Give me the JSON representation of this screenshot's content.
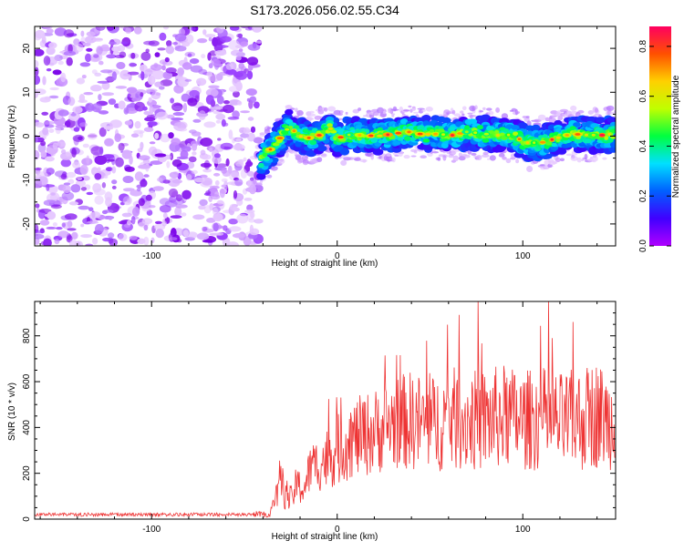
{
  "figure": {
    "title": "S173.2026.056.02.55.C34"
  },
  "chart_data": [
    {
      "type": "heatmap",
      "name": "spectrogram",
      "xlabel": "Height of straight line (km)",
      "ylabel": "Frequency (Hz)",
      "xlim": [
        -163,
        150
      ],
      "ylim": [
        -25,
        25
      ],
      "xticks": [
        -100,
        0,
        100
      ],
      "yticks": [
        20,
        10,
        0,
        -10,
        -20
      ],
      "noise_region_x": [
        -163,
        -42
      ],
      "colorbar": {
        "label": "Normalized spectral amplitude",
        "range": [
          0,
          0.88
        ],
        "ticks": [
          0.0,
          0.2,
          0.4,
          0.6,
          0.8
        ],
        "colormap": [
          "#b000ff",
          "#4000ff",
          "#0060ff",
          "#00e0ff",
          "#00ff40",
          "#c0ff00",
          "#ffd000",
          "#ff5000",
          "#ff0060"
        ]
      },
      "signal_track": {
        "x": [
          -42,
          -38,
          -34,
          -30,
          -26,
          -24,
          -20,
          -14,
          -8,
          -4,
          0,
          6,
          14,
          22,
          30,
          38,
          46,
          54,
          62,
          70,
          78,
          86,
          94,
          102,
          110,
          118,
          126,
          134,
          142,
          148
        ],
        "frequency": [
          -6,
          -4,
          -2,
          0,
          2,
          1.5,
          0,
          -0.5,
          0.5,
          2,
          -0.5,
          0.3,
          0.2,
          0,
          0.5,
          1,
          0.4,
          0.5,
          0.2,
          1,
          0.6,
          0.2,
          0.3,
          -1.5,
          -1.5,
          -0.5,
          0.5,
          0.3,
          0.2,
          0.5
        ]
      }
    },
    {
      "type": "line",
      "name": "snr",
      "xlabel": "Height of straight line (km)",
      "ylabel": "SNR (10 * v/v)",
      "xlim": [
        -163,
        150
      ],
      "ylim": [
        0,
        950
      ],
      "xticks": [
        -100,
        0,
        100
      ],
      "yticks": [
        0,
        200,
        400,
        600,
        800
      ],
      "color": "#ee3333",
      "series": [
        {
          "name": "SNR",
          "envelope": {
            "x": [
              -163,
              -45,
              -36,
              -31,
              -28,
              -25,
              -22,
              -18,
              -14,
              -10,
              -6,
              -2,
              2,
              6,
              12,
              20,
              30,
              40,
              50,
              60,
              70,
              80,
              90,
              100,
              110,
              120,
              130,
              140,
              150
            ],
            "mean": [
              20,
              20,
              20,
              150,
              120,
              80,
              150,
              130,
              230,
              240,
              260,
              290,
              310,
              340,
              360,
              380,
              420,
              430,
              410,
              440,
              430,
              430,
              450,
              430,
              440,
              420,
              430,
              460,
              410
            ],
            "spread": [
              15,
              15,
              15,
              120,
              80,
              60,
              80,
              80,
              110,
              120,
              140,
              150,
              160,
              170,
              180,
              190,
              200,
              220,
              210,
              230,
              220,
              230,
              230,
              220,
              230,
              220,
              230,
              240,
              200
            ]
          }
        }
      ]
    }
  ]
}
